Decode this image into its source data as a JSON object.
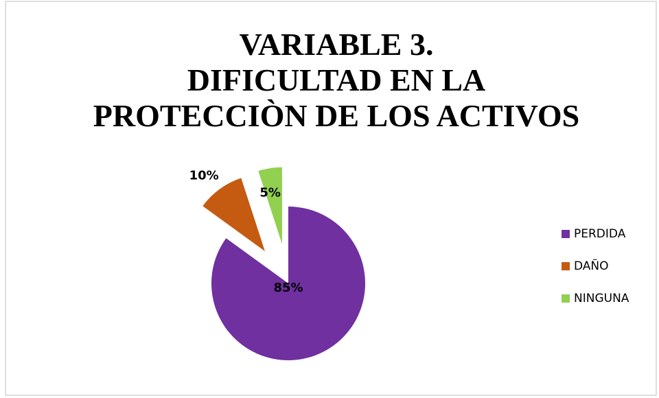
{
  "chart_data": {
    "type": "pie",
    "title": [
      "VARIABLE 3.",
      "DIFICULTAD EN LA",
      "PROTECCIÒN DE LOS ACTIVOS"
    ],
    "categories": [
      "PERDIDA",
      "DAÑO",
      "NINGUNA"
    ],
    "values": [
      85,
      10,
      5
    ],
    "value_labels": [
      "85%",
      "10%",
      "5%"
    ],
    "colors": [
      "#7030a0",
      "#c55a11",
      "#92d050"
    ],
    "exploded": [
      false,
      true,
      true
    ],
    "legend": "right"
  }
}
